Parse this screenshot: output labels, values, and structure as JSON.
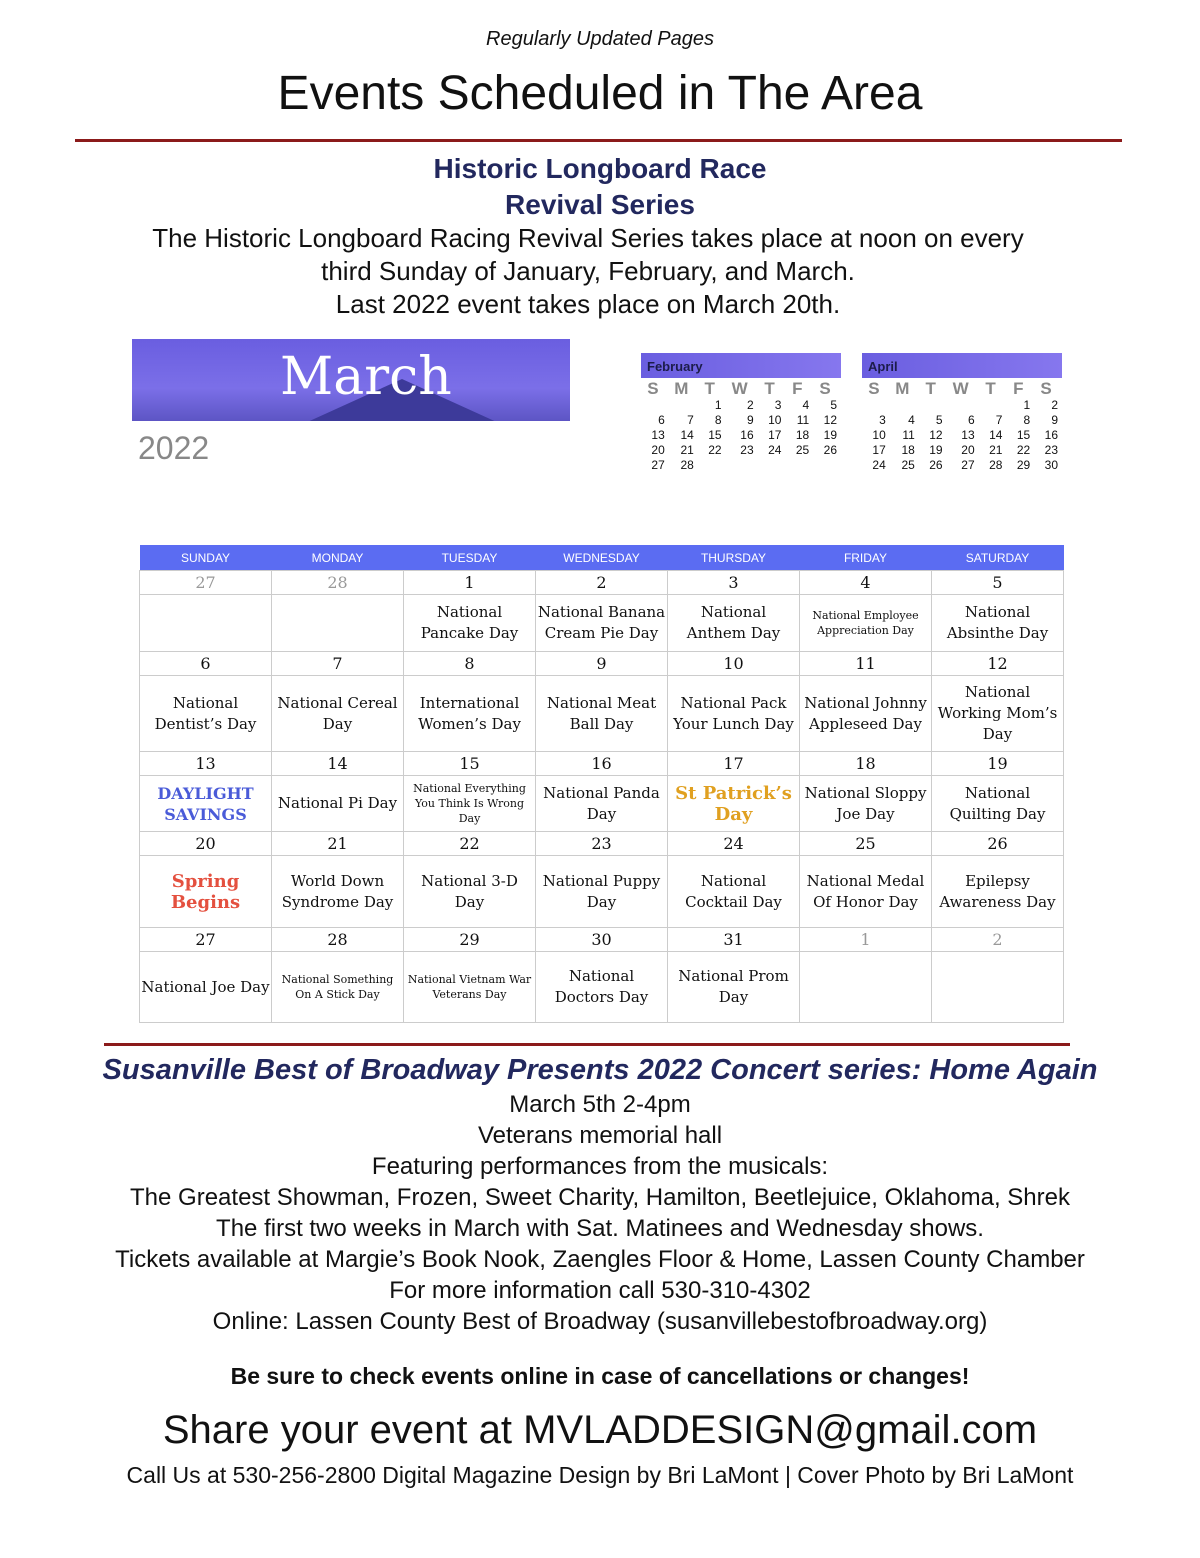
{
  "header": {
    "subtitle": "Regularly Updated Pages",
    "title": "Events Scheduled in The Area"
  },
  "longboard": {
    "title1": "Historic Longboard Race",
    "title2": "Revival Series",
    "lines": [
      "The Historic Longboard Racing Revival Series takes place at noon on every",
      "third Sunday of January, February, and March.",
      "Last 2022 event takes place on March 20th."
    ]
  },
  "month_banner": {
    "month": "March",
    "year": "2022"
  },
  "mini_calendars": [
    {
      "name": "February",
      "dow": [
        "S",
        "M",
        "T",
        "W",
        "T",
        "F",
        "S"
      ],
      "weeks": [
        [
          "",
          "",
          "1",
          "2",
          "3",
          "4",
          "5"
        ],
        [
          "6",
          "7",
          "8",
          "9",
          "10",
          "11",
          "12"
        ],
        [
          "13",
          "14",
          "15",
          "16",
          "17",
          "18",
          "19"
        ],
        [
          "20",
          "21",
          "22",
          "23",
          "24",
          "25",
          "26"
        ],
        [
          "27",
          "28",
          "",
          "",
          "",
          "",
          ""
        ]
      ]
    },
    {
      "name": "April",
      "dow": [
        "S",
        "M",
        "T",
        "W",
        "T",
        "F",
        "S"
      ],
      "weeks": [
        [
          "",
          "",
          "",
          "",
          "",
          "1",
          "2"
        ],
        [
          "3",
          "4",
          "5",
          "6",
          "7",
          "8",
          "9"
        ],
        [
          "10",
          "11",
          "12",
          "13",
          "14",
          "15",
          "16"
        ],
        [
          "17",
          "18",
          "19",
          "20",
          "21",
          "22",
          "23"
        ],
        [
          "24",
          "25",
          "26",
          "27",
          "28",
          "29",
          "30"
        ]
      ]
    }
  ],
  "calendar": {
    "days": [
      "SUNDAY",
      "MONDAY",
      "TUESDAY",
      "WEDNESDAY",
      "THURSDAY",
      "FRIDAY",
      "SATURDAY"
    ],
    "weeks": [
      {
        "dates": [
          "27",
          "28",
          "1",
          "2",
          "3",
          "4",
          "5"
        ],
        "events": [
          "",
          "",
          "National Pancake Day",
          "National Banana Cream Pie Day",
          "National Anthem Day",
          "National Employee Appreciation Day",
          "National Absinthe Day"
        ]
      },
      {
        "dates": [
          "6",
          "7",
          "8",
          "9",
          "10",
          "11",
          "12"
        ],
        "events": [
          "National Dentist’s Day",
          "National Cereal Day",
          "International Women’s Day",
          "National Meat Ball Day",
          "National Pack Your Lunch Day",
          "National Johnny Appleseed Day",
          "National Working Mom’s Day"
        ]
      },
      {
        "dates": [
          "13",
          "14",
          "15",
          "16",
          "17",
          "18",
          "19"
        ],
        "events": [
          "DAYLIGHT SAVINGS",
          "National Pi Day",
          "National Everything You Think Is Wrong Day",
          "National Panda Day",
          "St Patrick’s Day",
          "National Sloppy Joe Day",
          "National Quilting Day"
        ]
      },
      {
        "dates": [
          "20",
          "21",
          "22",
          "23",
          "24",
          "25",
          "26"
        ],
        "events": [
          "Spring Begins",
          "World Down Syndrome Day",
          "National 3-D Day",
          "National Puppy Day",
          "National Cocktail Day",
          "National Medal Of Honor Day",
          "Epilepsy Awareness Day"
        ]
      },
      {
        "dates": [
          "27",
          "28",
          "29",
          "30",
          "31",
          "1",
          "2"
        ],
        "events": [
          "National Joe Day",
          "National Something On A Stick Day",
          "National Vietnam War Veterans Day",
          "National Doctors Day",
          "National Prom Day",
          "",
          ""
        ]
      }
    ],
    "colors": {
      "header": "#5b6cf2",
      "daylight": "#4a5bd8",
      "spring": "#e4503f",
      "stpatrick": "#e0a020"
    }
  },
  "broadway": {
    "title": "Susanville Best of Broadway Presents 2022 Concert series: Home Again",
    "lines": [
      "March 5th 2-4pm",
      "Veterans memorial hall",
      "Featuring performances from the musicals:",
      "The Greatest Showman, Frozen, Sweet Charity, Hamilton, Beetlejuice, Oklahoma, Shrek",
      "The first two weeks in March with Sat. Matinees and Wednesday shows.",
      "Tickets available at Margie’s Book Nook, Zaengles Floor & Home, Lassen County Chamber",
      "For more information call 530-310-4302",
      "Online: Lassen County Best of Broadway (susanvillebestofbroadway.org)"
    ]
  },
  "footer": {
    "warning": "Be sure to check events online in case of cancellations or changes!",
    "share": "Share your event at MVLADDESIGN@gmail.com",
    "credits": "Call Us at 530-256-2800 Digital Magazine Design by Bri LaMont | Cover Photo by Bri LaMont"
  }
}
